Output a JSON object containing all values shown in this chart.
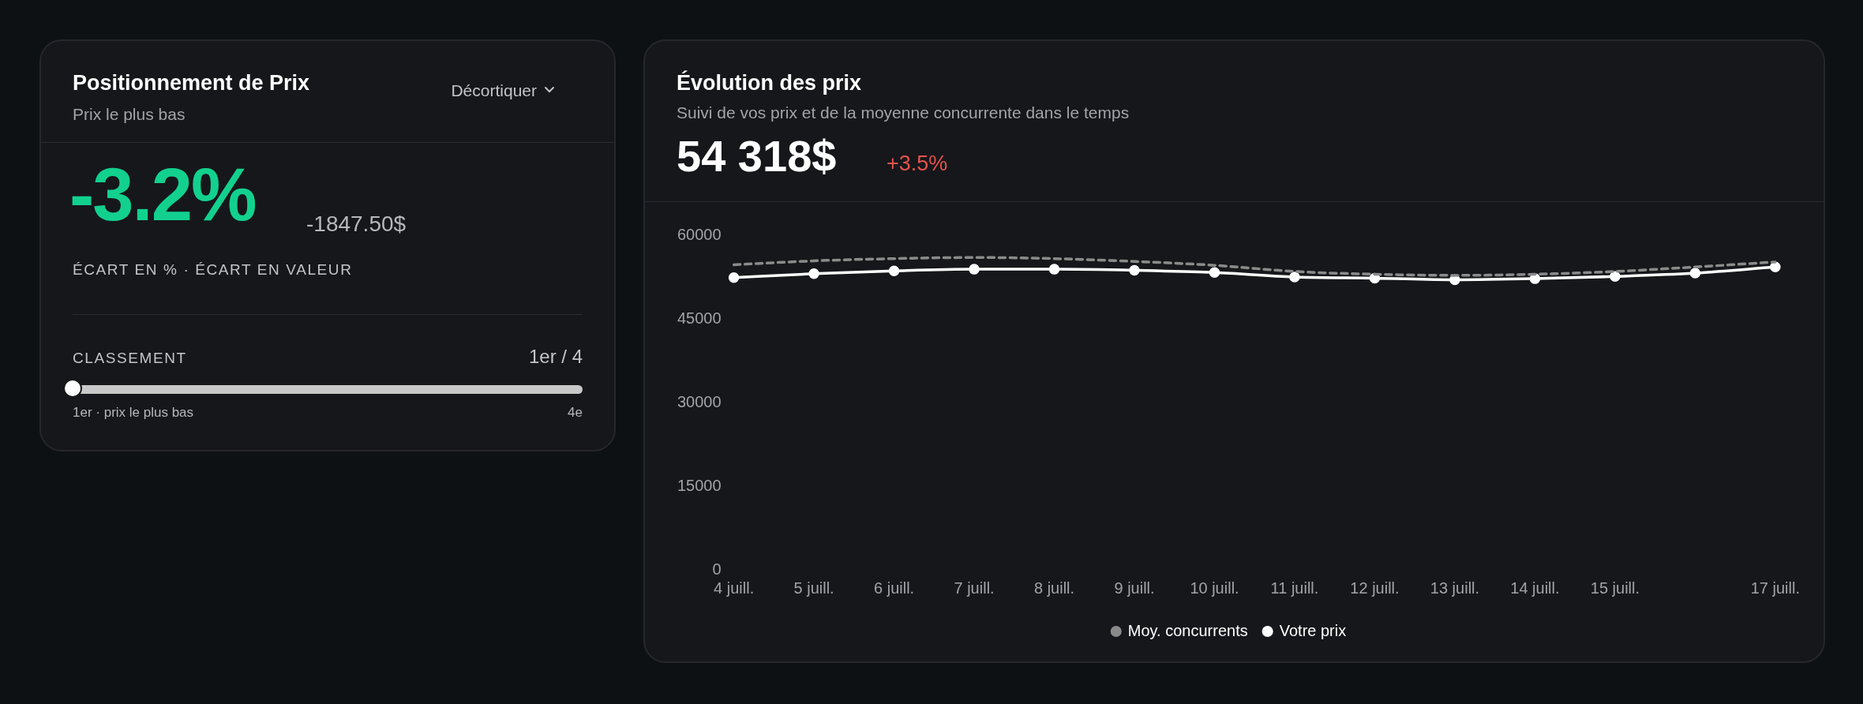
{
  "chart_data": [
    {
      "type": "other",
      "title": "Positionnement de Prix",
      "subtitle": "Prix le plus bas",
      "annotations": [
        "Décortiquer",
        "-3.2%",
        "-1847.50$",
        "ÉCART EN % · ÉCART EN VALEUR",
        "CLASSEMENT",
        "1er / 4",
        "1er · prix le plus bas",
        "4e"
      ]
    },
    {
      "type": "line",
      "title": "Évolution des prix",
      "subtitle": "Suivi de vos prix et de la moyenne concurrente dans le temps",
      "annotations": [
        "54 318$",
        "+3.5%"
      ],
      "categories": [
        "4 juill.",
        "5 juill.",
        "6 juill.",
        "7 juill.",
        "8 juill.",
        "9 juill.",
        "10 juill.",
        "11 juill.",
        "12 juill.",
        "13 juill.",
        "14 juill.",
        "15 juill.",
        null,
        "17 juill."
      ],
      "series": [
        {
          "name": "Moy. concurrents",
          "color": "#8a8a8a",
          "line_style": "dashed",
          "marker": "none",
          "values": [
            54700,
            55400,
            55800,
            56000,
            55800,
            55300,
            54600,
            53500,
            53000,
            52800,
            53000,
            53500,
            54300,
            55200
          ]
        },
        {
          "name": "Votre prix",
          "color": "#ffffff",
          "line_style": "solid",
          "marker": "circle",
          "values": [
            52400,
            53100,
            53600,
            53900,
            53900,
            53700,
            53300,
            52500,
            52300,
            52000,
            52200,
            52600,
            53200,
            54300
          ]
        }
      ],
      "ylim": [
        0,
        60000
      ],
      "yticks": [
        0,
        15000,
        30000,
        45000,
        60000
      ],
      "grid": false,
      "legend": "bottom"
    }
  ]
}
